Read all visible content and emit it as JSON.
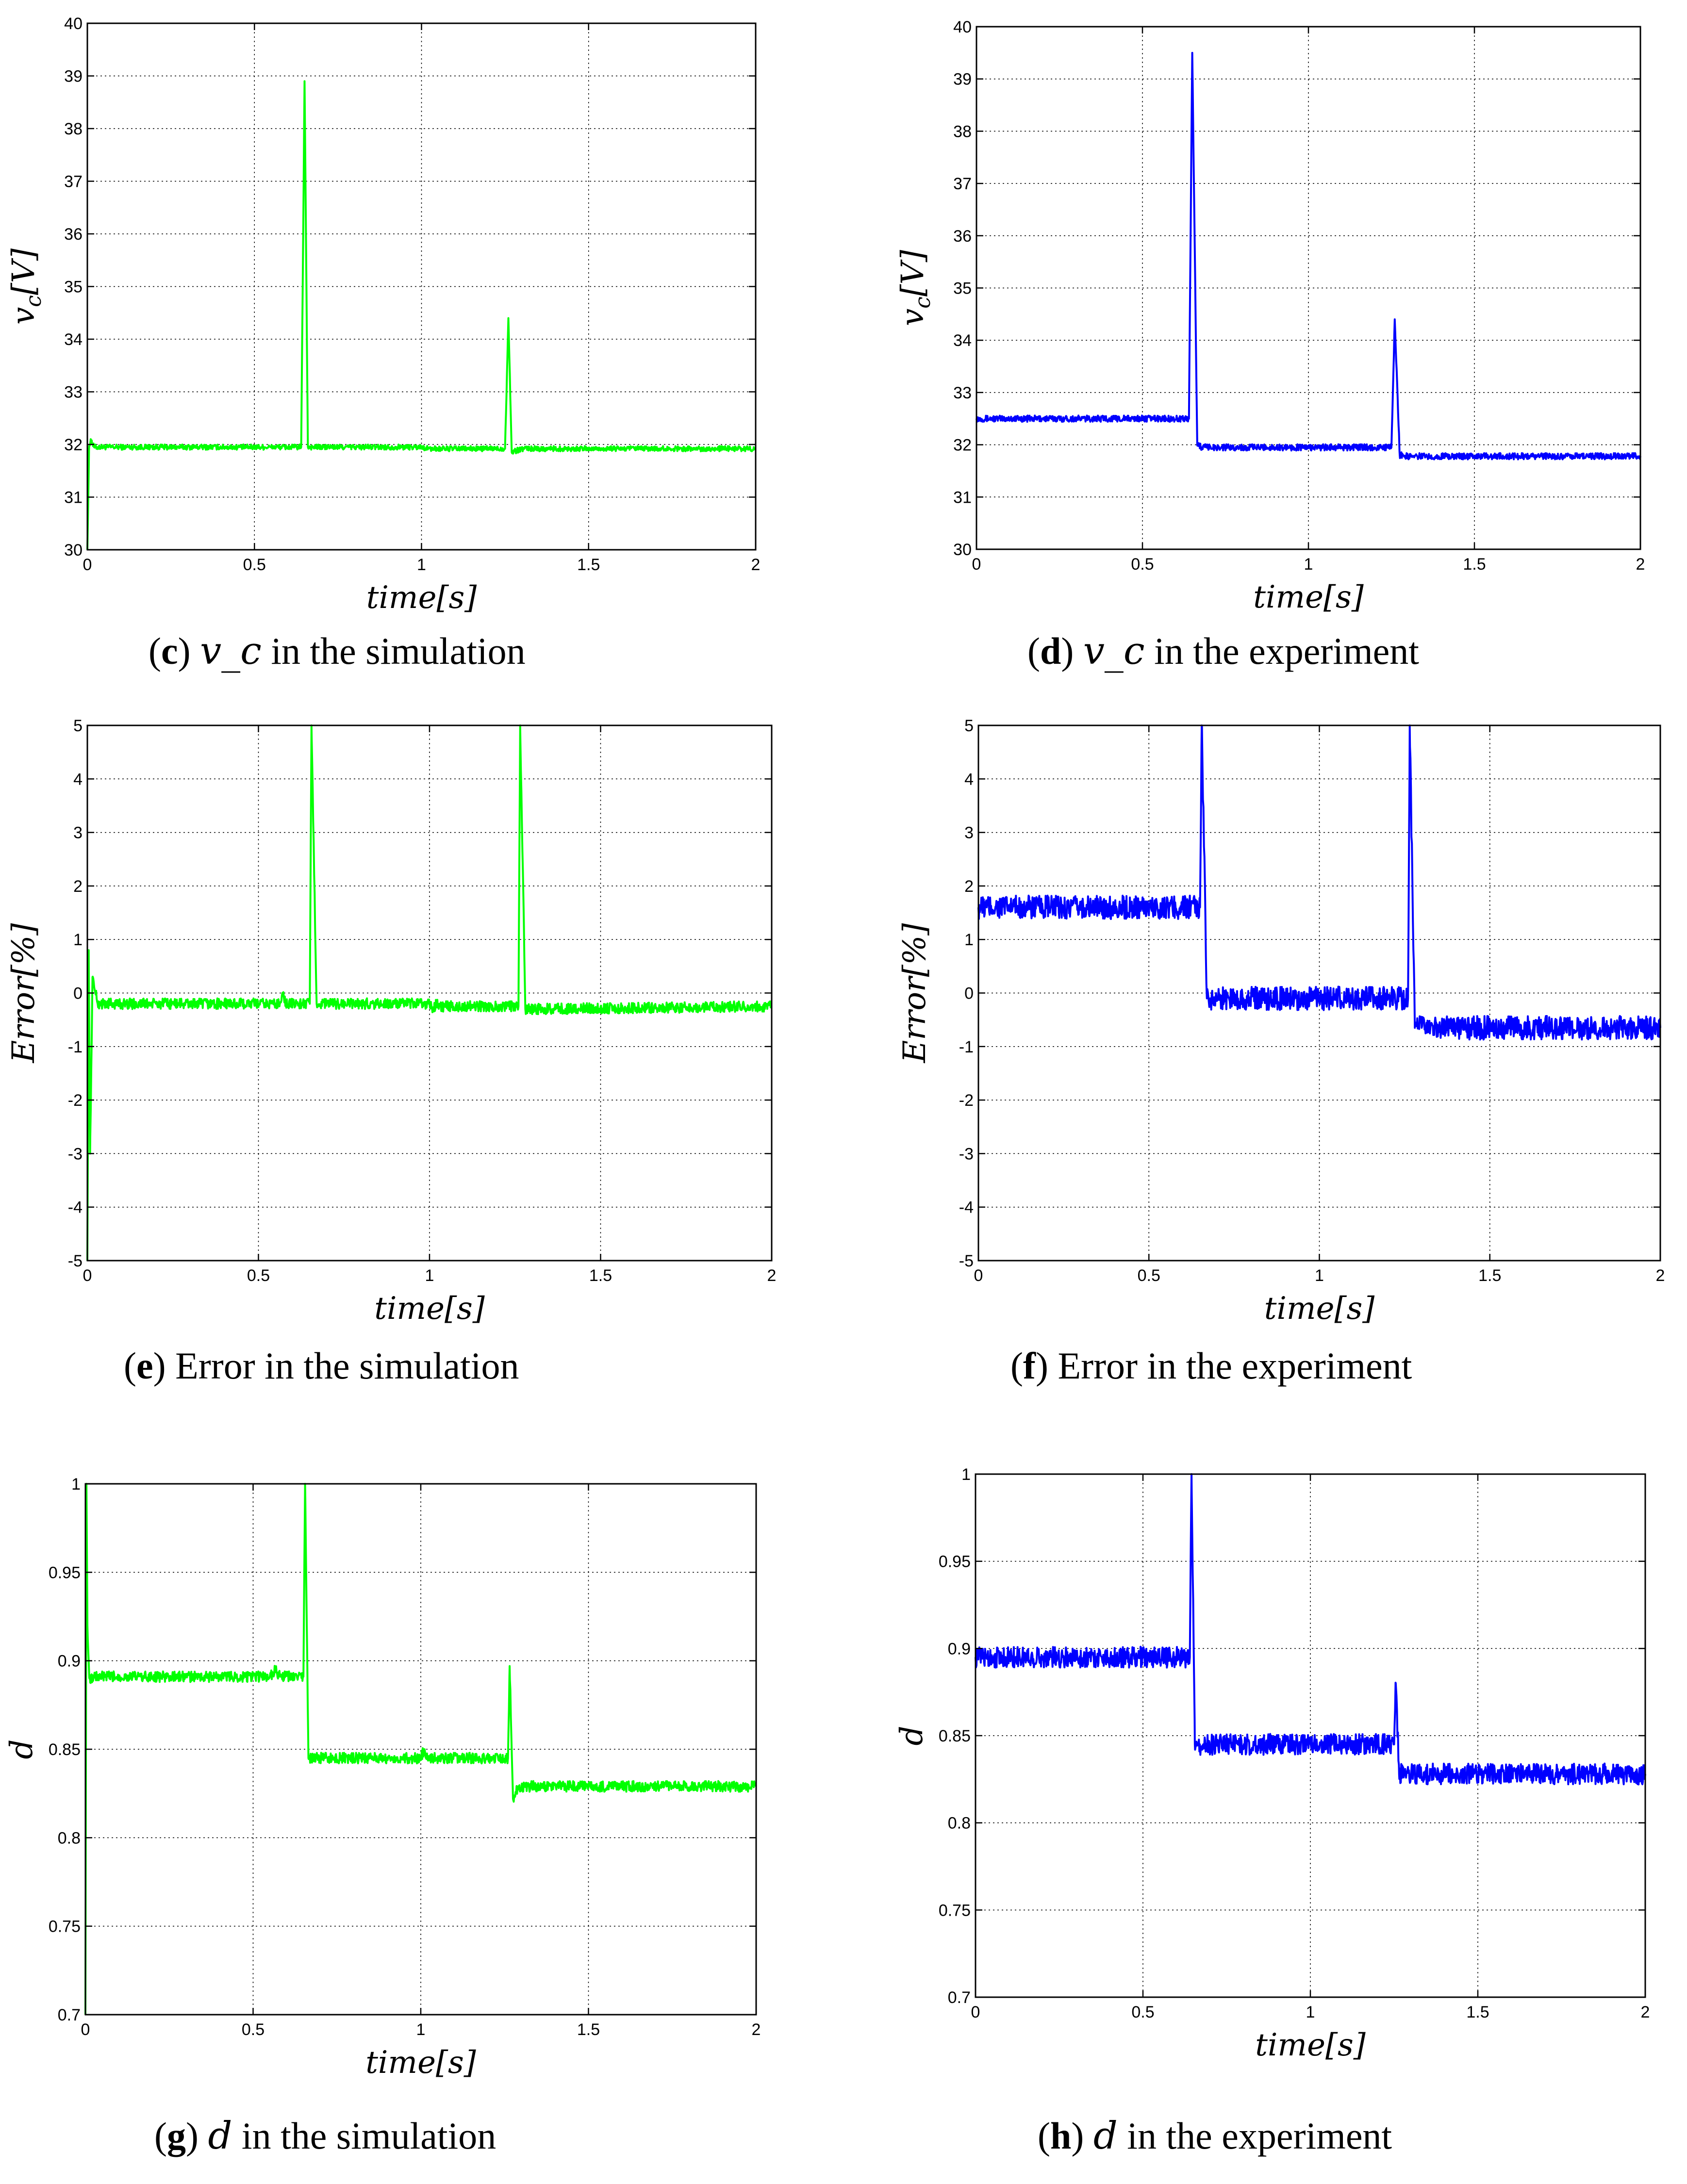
{
  "chart_data": [
    {
      "id": "c",
      "type": "line",
      "color": "#00ff00",
      "ylabel": "v_c[V]",
      "xlabel": "time[s]",
      "xlim": [
        0,
        2
      ],
      "ylim": [
        30,
        40
      ],
      "xticks": [
        0,
        0.5,
        1,
        1.5,
        2
      ],
      "xtick_labels": [
        "0",
        "0.5",
        "1",
        "1.5",
        "2"
      ],
      "yticks": [
        30,
        31,
        32,
        33,
        34,
        35,
        36,
        37,
        38,
        39,
        40
      ],
      "ytick_labels": [
        "30",
        "31",
        "32",
        "33",
        "34",
        "35",
        "36",
        "37",
        "38",
        "39",
        "40"
      ],
      "grid": true,
      "noise": 0.05,
      "series": [
        {
          "name": "v_c simulation",
          "x": [
            0,
            0.005,
            0.01,
            0.02,
            0.55,
            0.6,
            0.64,
            0.65,
            0.66,
            0.68,
            1.0,
            1.02,
            1.25,
            1.26,
            1.27,
            1.3,
            2.0
          ],
          "y": [
            30.0,
            31.9,
            32.1,
            31.95,
            31.95,
            31.95,
            31.95,
            38.9,
            31.95,
            31.95,
            31.95,
            31.92,
            31.92,
            34.4,
            31.85,
            31.92,
            31.92
          ]
        }
      ],
      "caption": {
        "letter": "c",
        "symbol": "v_c",
        "text": "in the simulation"
      }
    },
    {
      "id": "d",
      "type": "line",
      "color": "#0000ff",
      "ylabel": "v_c[V]",
      "xlabel": "time[s]",
      "xlim": [
        0,
        2
      ],
      "ylim": [
        30,
        40
      ],
      "xticks": [
        0,
        0.5,
        1,
        1.5,
        2
      ],
      "xtick_labels": [
        "0",
        "0.5",
        "1",
        "1.5",
        "2"
      ],
      "yticks": [
        30,
        31,
        32,
        33,
        34,
        35,
        36,
        37,
        38,
        39,
        40
      ],
      "ytick_labels": [
        "30",
        "31",
        "32",
        "33",
        "34",
        "35",
        "36",
        "37",
        "38",
        "39",
        "40"
      ],
      "grid": true,
      "noise": 0.06,
      "series": [
        {
          "name": "v_c experiment",
          "x": [
            0,
            0.64,
            0.65,
            0.665,
            0.68,
            1.25,
            1.26,
            1.275,
            1.3,
            2.0
          ],
          "y": [
            32.5,
            32.5,
            39.5,
            32.0,
            31.95,
            31.95,
            34.4,
            31.8,
            31.78,
            31.78
          ]
        }
      ],
      "caption": {
        "letter": "d",
        "symbol": "v_c",
        "text": "in the experiment"
      }
    },
    {
      "id": "e",
      "type": "line",
      "color": "#00ff00",
      "ylabel": "Error[%]",
      "xlabel": "time[s]",
      "xlim": [
        0,
        2
      ],
      "ylim": [
        -5,
        5
      ],
      "xticks": [
        0,
        0.5,
        1,
        1.5,
        2
      ],
      "xtick_labels": [
        "0",
        "0.5",
        "1",
        "1.5",
        "2"
      ],
      "yticks": [
        -5,
        -4,
        -3,
        -2,
        -1,
        0,
        1,
        2,
        3,
        4,
        5
      ],
      "ytick_labels": [
        "-5",
        "-4",
        "-3",
        "-2",
        "-1",
        "0",
        "1",
        "2",
        "3",
        "4",
        "5"
      ],
      "grid": true,
      "noise": 0.1,
      "series": [
        {
          "name": "Error simulation",
          "x": [
            0,
            0.004,
            0.008,
            0.015,
            0.03,
            0.56,
            0.57,
            0.58,
            0.65,
            0.655,
            0.67,
            1.0,
            1.01,
            1.02,
            1.03,
            1.26,
            1.265,
            1.28,
            2.0
          ],
          "y": [
            -5.0,
            0.8,
            -3.0,
            0.3,
            -0.2,
            -0.2,
            0.0,
            -0.2,
            -0.2,
            5.0,
            -0.2,
            -0.2,
            -0.3,
            -0.2,
            -0.25,
            -0.25,
            5.0,
            -0.3,
            -0.25
          ]
        }
      ],
      "caption": {
        "letter": "e",
        "symbol": "",
        "text": "Error in the simulation"
      }
    },
    {
      "id": "f",
      "type": "line",
      "color": "#0000ff",
      "ylabel": "Error[%]",
      "xlabel": "time[s]",
      "xlim": [
        0,
        2
      ],
      "ylim": [
        -5,
        5
      ],
      "xticks": [
        0,
        0.5,
        1,
        1.5,
        2
      ],
      "xtick_labels": [
        "0",
        "0.5",
        "1",
        "1.5",
        "2"
      ],
      "yticks": [
        -5,
        -4,
        -3,
        -2,
        -1,
        0,
        1,
        2,
        3,
        4,
        5
      ],
      "ytick_labels": [
        "-5",
        "-4",
        "-3",
        "-2",
        "-1",
        "0",
        "1",
        "2",
        "3",
        "4",
        "5"
      ],
      "grid": true,
      "noise": 0.22,
      "series": [
        {
          "name": "Error experiment",
          "x": [
            0,
            0.65,
            0.655,
            0.67,
            0.68,
            1.26,
            1.265,
            1.28,
            1.3,
            2.0
          ],
          "y": [
            1.6,
            1.6,
            5.0,
            -0.1,
            -0.1,
            -0.1,
            5.0,
            -0.65,
            -0.65,
            -0.65
          ]
        }
      ],
      "caption": {
        "letter": "f",
        "symbol": "",
        "text": "Error in the experiment"
      }
    },
    {
      "id": "g",
      "type": "line",
      "color": "#00ff00",
      "ylabel": "d",
      "xlabel": "time[s]",
      "xlim": [
        0,
        2
      ],
      "ylim": [
        0.7,
        1
      ],
      "xticks": [
        0,
        0.5,
        1,
        1.5,
        2
      ],
      "xtick_labels": [
        "0",
        "0.5",
        "1",
        "1.5",
        "2"
      ],
      "yticks": [
        0.7,
        0.75,
        0.8,
        0.85,
        0.9,
        0.95,
        1
      ],
      "ytick_labels": [
        "0.7",
        "0.75",
        "0.8",
        "0.85",
        "0.9",
        "0.95",
        "1"
      ],
      "grid": true,
      "noise": 0.003,
      "series": [
        {
          "name": "d simulation",
          "x": [
            0,
            0.003,
            0.006,
            0.012,
            0.03,
            0.55,
            0.565,
            0.58,
            0.65,
            0.655,
            0.665,
            0.68,
            1.0,
            1.01,
            1.02,
            1.26,
            1.265,
            1.275,
            1.29,
            2.0
          ],
          "y": [
            0.7,
            1.0,
            0.92,
            0.89,
            0.891,
            0.891,
            0.895,
            0.891,
            0.891,
            1.0,
            0.845,
            0.845,
            0.845,
            0.85,
            0.845,
            0.845,
            0.897,
            0.822,
            0.829,
            0.829
          ]
        }
      ],
      "caption": {
        "letter": "g",
        "symbol": "d",
        "text": "in the simulation"
      }
    },
    {
      "id": "h",
      "type": "line",
      "color": "#0000ff",
      "ylabel": "d",
      "xlabel": "time[s]",
      "xlim": [
        0,
        2
      ],
      "ylim": [
        0.7,
        1
      ],
      "xticks": [
        0,
        0.5,
        1,
        1.5,
        2
      ],
      "xtick_labels": [
        "0",
        "0.5",
        "1",
        "1.5",
        "2"
      ],
      "yticks": [
        0.7,
        0.75,
        0.8,
        0.85,
        0.9,
        0.95,
        1
      ],
      "ytick_labels": [
        "0.7",
        "0.75",
        "0.8",
        "0.85",
        "0.9",
        "0.95",
        "1"
      ],
      "grid": true,
      "noise": 0.006,
      "series": [
        {
          "name": "d experiment",
          "x": [
            0,
            0.64,
            0.645,
            0.655,
            0.67,
            1.25,
            1.255,
            1.265,
            1.28,
            2.0
          ],
          "y": [
            0.895,
            0.895,
            1.0,
            0.845,
            0.845,
            0.845,
            0.88,
            0.828,
            0.828,
            0.828
          ]
        }
      ],
      "caption": {
        "letter": "h",
        "symbol": "d",
        "text": "in the experiment"
      }
    }
  ]
}
